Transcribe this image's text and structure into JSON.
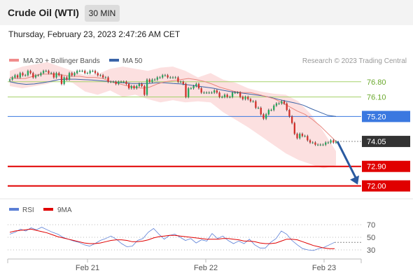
{
  "header": {
    "title": "Crude Oil (WTI)",
    "timeframe": "30 MIN"
  },
  "datetime": "Thursday, February 23, 2023 2:47:26 AM CET",
  "legend": {
    "ma20": {
      "label": "MA 20 + Bollinger Bands",
      "color": "#f08c8c"
    },
    "ma50": {
      "label": "MA 50",
      "color": "#3a64a8"
    },
    "credit": "Research © 2023 Trading Central"
  },
  "rsi_legend": {
    "rsi": {
      "label": "RSI",
      "color": "#5b7fd6"
    },
    "ma9": {
      "label": "9MA",
      "color": "#e00000"
    }
  },
  "chart_data": [
    {
      "type": "candlestick",
      "ylim": [
        71.6,
        77.6
      ],
      "x_ticks": [
        "Feb 21",
        "Feb 22",
        "Feb 23"
      ],
      "levels": [
        {
          "value": 76.8,
          "label": "76.80",
          "kind": "resistance",
          "color": "#a6d26b"
        },
        {
          "value": 76.1,
          "label": "76.10",
          "kind": "resistance",
          "color": "#a6d26b"
        },
        {
          "value": 75.2,
          "label": "75.20",
          "kind": "pivot",
          "color": "#3a78e0"
        },
        {
          "value": 74.05,
          "label": "74.05",
          "kind": "last",
          "color": "#333333"
        },
        {
          "value": 72.9,
          "label": "72.90",
          "kind": "support",
          "color": "#e00000"
        },
        {
          "value": 72.0,
          "label": "72.00",
          "kind": "support",
          "color": "#e00000"
        }
      ],
      "forecast_arrow": {
        "from": 74.05,
        "to": 72.0,
        "color": "#2a5aa0"
      },
      "closes": [
        76.9,
        77.0,
        77.1,
        77.0,
        77.2,
        77.1,
        77.1,
        77.3,
        77.2,
        77.0,
        77.1,
        77.1,
        77.2,
        77.3,
        77.3,
        77.2,
        77.2,
        77.0,
        77.2,
        77.1,
        76.7,
        77.0,
        76.9,
        77.2,
        77.1,
        77.2,
        77.3,
        77.3,
        77.3,
        77.2,
        77.2,
        77.3,
        77.3,
        77.2,
        77.1,
        77.1,
        77.0,
        77.0,
        76.8,
        76.8,
        76.8,
        76.7,
        76.8,
        76.8,
        76.8,
        76.7,
        76.5,
        76.6,
        76.5,
        76.6,
        76.7,
        76.6,
        76.2,
        76.9,
        76.8,
        76.9,
        76.9,
        77.0,
        77.0,
        77.1,
        77.1,
        77.0,
        77.0,
        77.0,
        77.0,
        76.8,
        76.8,
        76.7,
        76.1,
        76.5,
        76.5,
        76.6,
        76.7,
        76.5,
        76.3,
        76.3,
        76.3,
        76.3,
        76.3,
        76.4,
        76.3,
        76.1,
        76.1,
        76.2,
        76.1,
        76.1,
        76.3,
        76.3,
        76.3,
        76.1,
        76.0,
        76.1,
        76.0,
        75.9,
        75.9,
        75.6,
        75.6,
        75.3,
        75.1,
        75.3,
        75.5,
        75.5,
        75.7,
        75.8,
        75.8,
        75.9,
        75.8,
        75.5,
        75.2,
        74.9,
        74.4,
        74.2,
        74.4,
        74.3,
        74.3,
        74.1,
        74.0,
        74.0,
        73.9,
        73.9,
        73.9,
        73.9,
        74.0,
        74.0,
        74.1,
        74.0,
        74.05
      ],
      "ma20": [
        77.0,
        76.95,
        76.95,
        77.05,
        77.15,
        77.15,
        77.15,
        77.1,
        77.05,
        77.05,
        77.0,
        77.0,
        76.95,
        76.8,
        76.72,
        76.62,
        76.55,
        76.5,
        76.55,
        76.7,
        76.8,
        76.85,
        76.9,
        76.95,
        76.9,
        76.82,
        76.7,
        76.55,
        76.45,
        76.35,
        76.3,
        76.3,
        76.22,
        76.12,
        76.02,
        75.85,
        75.65,
        75.45,
        75.3,
        75.05,
        74.75,
        74.4,
        74.05
      ],
      "ma50": [
        76.8,
        76.72,
        76.68,
        76.7,
        76.75,
        76.82,
        76.9,
        76.92,
        76.92,
        76.9,
        76.88,
        76.85,
        76.82,
        76.78,
        76.75,
        76.72,
        76.72,
        76.72,
        76.75,
        76.75,
        76.72,
        76.7,
        76.65,
        76.6,
        76.55,
        76.5,
        76.42,
        76.35,
        76.3,
        76.25,
        76.2,
        76.15,
        76.08,
        75.98,
        75.9,
        75.82,
        75.72,
        75.55,
        75.4,
        75.25,
        75.2
      ],
      "bb_upper": [
        77.3,
        77.5,
        77.6,
        77.7,
        77.5,
        77.3,
        77.1,
        77.15,
        77.4,
        77.5,
        77.4,
        77.3,
        77.45,
        77.5,
        77.3,
        77.0,
        77.2,
        76.9,
        76.75,
        76.5,
        76.35,
        76.25,
        76.2,
        75.9,
        75.3,
        74.5,
        73.6
      ],
      "bb_lower": [
        76.6,
        76.5,
        76.6,
        76.7,
        76.9,
        76.75,
        76.35,
        76.2,
        76.4,
        76.1,
        76.2,
        76.0,
        75.85,
        75.95,
        75.85,
        75.9,
        75.85,
        75.4,
        75.05,
        74.7,
        74.3,
        73.9,
        73.5,
        73.2,
        73.0,
        72.8,
        72.95
      ]
    },
    {
      "type": "line",
      "title": "RSI",
      "ylim": [
        20,
        80
      ],
      "y_ticks": [
        70,
        50,
        30
      ],
      "series": [
        {
          "name": "RSI",
          "values": [
            55,
            58,
            63,
            60,
            65,
            62,
            66,
            62,
            58,
            55,
            50,
            47,
            44,
            42,
            38,
            36,
            40,
            45,
            48,
            52,
            47,
            40,
            35,
            36,
            45,
            48,
            58,
            64,
            55,
            47,
            53,
            55,
            50,
            45,
            48,
            41,
            46,
            44,
            56,
            48,
            52,
            45,
            40,
            44,
            40,
            47,
            38,
            33,
            33,
            42,
            48,
            60,
            55,
            45,
            38,
            32,
            30,
            29,
            32,
            34,
            38,
            42
          ]
        },
        {
          "name": "9MA",
          "values": [
            58,
            60,
            61,
            62,
            63,
            61,
            59,
            57,
            54,
            51,
            49,
            47,
            45,
            43,
            41,
            40,
            40,
            41,
            43,
            45,
            46,
            46,
            45,
            43,
            43,
            44,
            46,
            49,
            51,
            52,
            53,
            53,
            52,
            51,
            50,
            49,
            48,
            47,
            47,
            47,
            48,
            48,
            47,
            46,
            44,
            44,
            43,
            41,
            40,
            40,
            41,
            44,
            47,
            47,
            46,
            43,
            40,
            37,
            35,
            33,
            32,
            32
          ]
        }
      ]
    }
  ]
}
